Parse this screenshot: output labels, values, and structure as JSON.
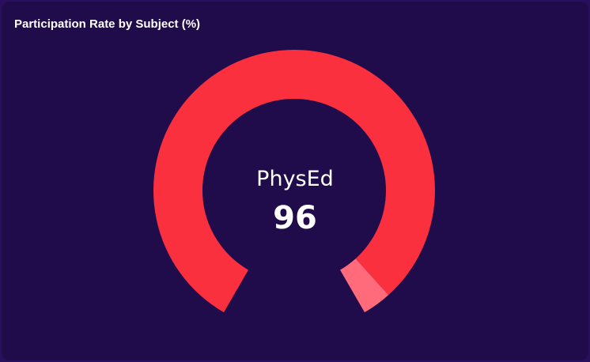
{
  "chart_data": {
    "type": "gauge",
    "title": "Participation Rate by Subject (%)",
    "series": [
      {
        "name": "PhysEd",
        "value": 96
      }
    ],
    "range": [
      0,
      100
    ],
    "colors": {
      "fill": "#fb303e",
      "remainder": "#ff6b7a"
    }
  },
  "center": {
    "label": "PhysEd",
    "value": "96"
  },
  "colors": {
    "page_background": "#2a0f5e",
    "card_background": "#200c4a",
    "text": "#ffffff"
  }
}
